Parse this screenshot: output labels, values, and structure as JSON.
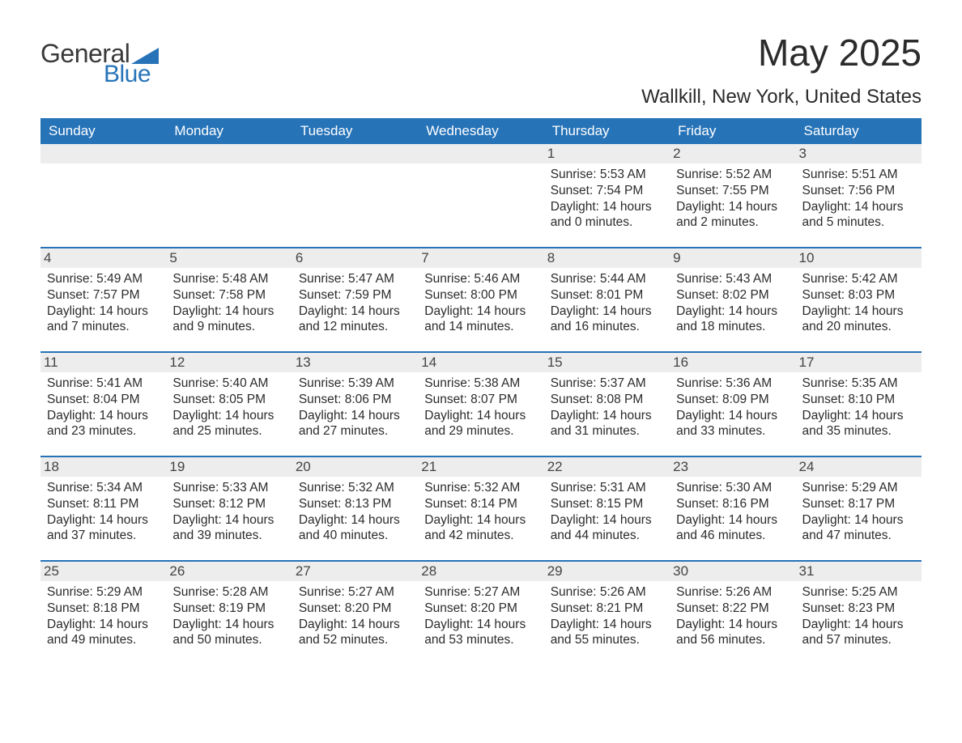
{
  "logo": {
    "general": "General",
    "blue": "Blue",
    "tri_color": "#2673b8"
  },
  "title": "May 2025",
  "location": "Wallkill, New York, United States",
  "colors": {
    "header_bg": "#2673b8",
    "header_text": "#ffffff",
    "daynum_bg": "#ededed",
    "body_text": "#2b2b2b",
    "page_bg": "#ffffff",
    "row_separator": "#2673b8"
  },
  "day_headers": [
    "Sunday",
    "Monday",
    "Tuesday",
    "Wednesday",
    "Thursday",
    "Friday",
    "Saturday"
  ],
  "weeks": [
    [
      null,
      null,
      null,
      null,
      {
        "n": "1",
        "sunrise": "5:53 AM",
        "sunset": "7:54 PM",
        "daylight": "14 hours and 0 minutes."
      },
      {
        "n": "2",
        "sunrise": "5:52 AM",
        "sunset": "7:55 PM",
        "daylight": "14 hours and 2 minutes."
      },
      {
        "n": "3",
        "sunrise": "5:51 AM",
        "sunset": "7:56 PM",
        "daylight": "14 hours and 5 minutes."
      }
    ],
    [
      {
        "n": "4",
        "sunrise": "5:49 AM",
        "sunset": "7:57 PM",
        "daylight": "14 hours and 7 minutes."
      },
      {
        "n": "5",
        "sunrise": "5:48 AM",
        "sunset": "7:58 PM",
        "daylight": "14 hours and 9 minutes."
      },
      {
        "n": "6",
        "sunrise": "5:47 AM",
        "sunset": "7:59 PM",
        "daylight": "14 hours and 12 minutes."
      },
      {
        "n": "7",
        "sunrise": "5:46 AM",
        "sunset": "8:00 PM",
        "daylight": "14 hours and 14 minutes."
      },
      {
        "n": "8",
        "sunrise": "5:44 AM",
        "sunset": "8:01 PM",
        "daylight": "14 hours and 16 minutes."
      },
      {
        "n": "9",
        "sunrise": "5:43 AM",
        "sunset": "8:02 PM",
        "daylight": "14 hours and 18 minutes."
      },
      {
        "n": "10",
        "sunrise": "5:42 AM",
        "sunset": "8:03 PM",
        "daylight": "14 hours and 20 minutes."
      }
    ],
    [
      {
        "n": "11",
        "sunrise": "5:41 AM",
        "sunset": "8:04 PM",
        "daylight": "14 hours and 23 minutes."
      },
      {
        "n": "12",
        "sunrise": "5:40 AM",
        "sunset": "8:05 PM",
        "daylight": "14 hours and 25 minutes."
      },
      {
        "n": "13",
        "sunrise": "5:39 AM",
        "sunset": "8:06 PM",
        "daylight": "14 hours and 27 minutes."
      },
      {
        "n": "14",
        "sunrise": "5:38 AM",
        "sunset": "8:07 PM",
        "daylight": "14 hours and 29 minutes."
      },
      {
        "n": "15",
        "sunrise": "5:37 AM",
        "sunset": "8:08 PM",
        "daylight": "14 hours and 31 minutes."
      },
      {
        "n": "16",
        "sunrise": "5:36 AM",
        "sunset": "8:09 PM",
        "daylight": "14 hours and 33 minutes."
      },
      {
        "n": "17",
        "sunrise": "5:35 AM",
        "sunset": "8:10 PM",
        "daylight": "14 hours and 35 minutes."
      }
    ],
    [
      {
        "n": "18",
        "sunrise": "5:34 AM",
        "sunset": "8:11 PM",
        "daylight": "14 hours and 37 minutes."
      },
      {
        "n": "19",
        "sunrise": "5:33 AM",
        "sunset": "8:12 PM",
        "daylight": "14 hours and 39 minutes."
      },
      {
        "n": "20",
        "sunrise": "5:32 AM",
        "sunset": "8:13 PM",
        "daylight": "14 hours and 40 minutes."
      },
      {
        "n": "21",
        "sunrise": "5:32 AM",
        "sunset": "8:14 PM",
        "daylight": "14 hours and 42 minutes."
      },
      {
        "n": "22",
        "sunrise": "5:31 AM",
        "sunset": "8:15 PM",
        "daylight": "14 hours and 44 minutes."
      },
      {
        "n": "23",
        "sunrise": "5:30 AM",
        "sunset": "8:16 PM",
        "daylight": "14 hours and 46 minutes."
      },
      {
        "n": "24",
        "sunrise": "5:29 AM",
        "sunset": "8:17 PM",
        "daylight": "14 hours and 47 minutes."
      }
    ],
    [
      {
        "n": "25",
        "sunrise": "5:29 AM",
        "sunset": "8:18 PM",
        "daylight": "14 hours and 49 minutes."
      },
      {
        "n": "26",
        "sunrise": "5:28 AM",
        "sunset": "8:19 PM",
        "daylight": "14 hours and 50 minutes."
      },
      {
        "n": "27",
        "sunrise": "5:27 AM",
        "sunset": "8:20 PM",
        "daylight": "14 hours and 52 minutes."
      },
      {
        "n": "28",
        "sunrise": "5:27 AM",
        "sunset": "8:20 PM",
        "daylight": "14 hours and 53 minutes."
      },
      {
        "n": "29",
        "sunrise": "5:26 AM",
        "sunset": "8:21 PM",
        "daylight": "14 hours and 55 minutes."
      },
      {
        "n": "30",
        "sunrise": "5:26 AM",
        "sunset": "8:22 PM",
        "daylight": "14 hours and 56 minutes."
      },
      {
        "n": "31",
        "sunrise": "5:25 AM",
        "sunset": "8:23 PM",
        "daylight": "14 hours and 57 minutes."
      }
    ]
  ],
  "labels": {
    "sunrise_prefix": "Sunrise: ",
    "sunset_prefix": "Sunset: ",
    "daylight_prefix": "Daylight: "
  }
}
